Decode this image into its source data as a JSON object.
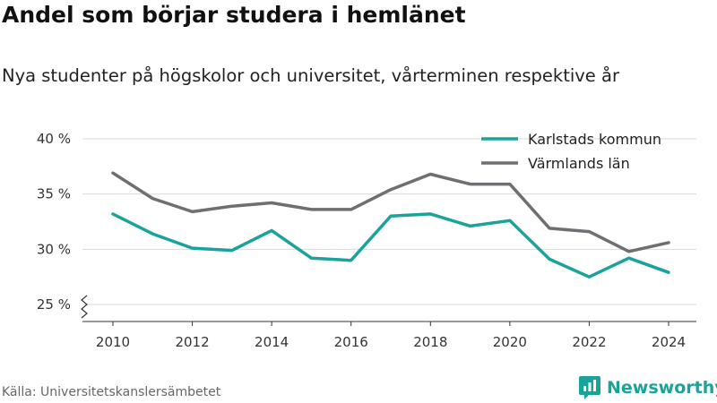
{
  "title": "Andel som börjar studera i hemlänet",
  "subtitle": "Nya studenter på högskolor och universitet, vårterminen respektive år",
  "source": "Källa: Universitetskanslersämbetet",
  "brand": {
    "name": "Newsworthy",
    "icon": "newsworthy-logo-icon",
    "color": "#1aa39a"
  },
  "chart_data": {
    "type": "line",
    "x": [
      2010,
      2011,
      2012,
      2013,
      2014,
      2015,
      2016,
      2017,
      2018,
      2019,
      2020,
      2021,
      2022,
      2023,
      2024
    ],
    "x_ticks": [
      2010,
      2012,
      2014,
      2016,
      2018,
      2020,
      2022,
      2024
    ],
    "y_ticks": [
      25,
      30,
      35,
      40
    ],
    "y_tick_labels": [
      "25 %",
      "30 %",
      "35 %",
      "40 %"
    ],
    "ylim": [
      25,
      40
    ],
    "y_axis_break": true,
    "grid": "horizontal",
    "legend_position": "top-right",
    "series": [
      {
        "name": "Karlstads kommun",
        "color": "#1aa39a",
        "values": [
          33.2,
          31.4,
          30.1,
          29.9,
          31.7,
          29.2,
          29.0,
          33.0,
          33.2,
          32.1,
          32.6,
          29.1,
          27.5,
          29.2,
          27.9
        ]
      },
      {
        "name": "Värmlands län",
        "color": "#6e6e73",
        "values": [
          36.9,
          34.6,
          33.4,
          33.9,
          34.2,
          33.6,
          33.6,
          35.4,
          36.8,
          35.9,
          35.9,
          31.9,
          31.6,
          29.8,
          30.6
        ]
      }
    ]
  }
}
